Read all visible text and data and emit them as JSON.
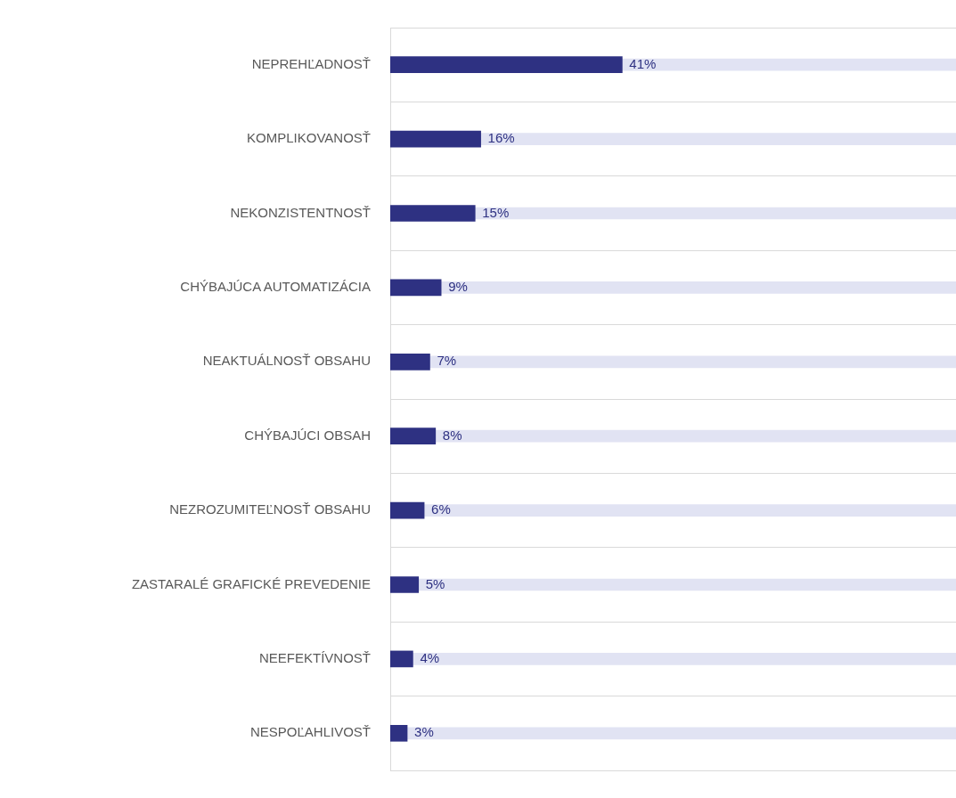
{
  "chart_data": {
    "type": "bar",
    "orientation": "horizontal",
    "categories": [
      "NEPREHĽADNOSŤ",
      "KOMPLIKOVANOSŤ",
      "NEKONZISTENTNOSŤ",
      "CHÝBAJÚCA AUTOMATIZÁCIA",
      "NEAKTUÁLNOSŤ OBSAHU",
      "CHÝBAJÚCI OBSAH",
      "NEZROZUMITEĽNOSŤ OBSAHU",
      "ZASTARALÉ GRAFICKÉ PREVEDENIE",
      "NEEFEKTÍVNOSŤ",
      "NESPOĽAHLIVOSŤ"
    ],
    "series": [
      {
        "color": "#2e3182",
        "values": [
          41,
          16,
          15,
          9,
          7,
          8,
          6,
          5,
          4,
          3
        ],
        "value_labels": [
          "41%",
          "16%",
          "15%",
          "9%",
          "7%",
          "8%",
          "6%",
          "5%",
          "4%",
          "3%"
        ]
      },
      {
        "color": "#e1e3f3",
        "values": [
          100,
          100,
          100,
          100,
          100,
          100,
          100,
          100,
          100,
          100
        ]
      }
    ],
    "xlim": [
      0,
      100
    ],
    "grid": "y",
    "legend": false,
    "tick_labels": "y"
  }
}
